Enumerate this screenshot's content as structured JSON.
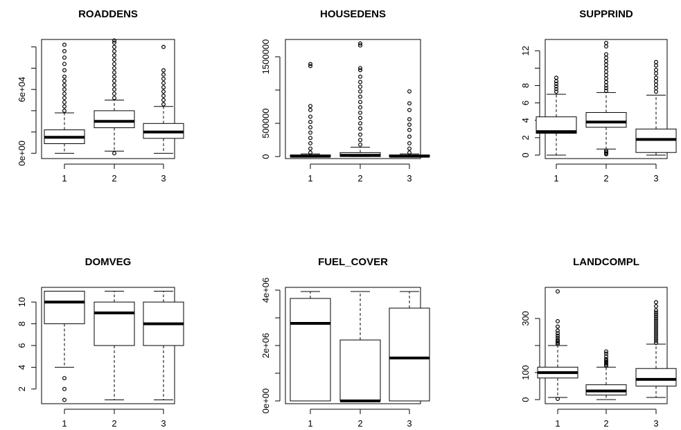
{
  "chart_data": [
    {
      "type": "box",
      "title": "ROADDENS",
      "categories": [
        "1",
        "2",
        "3"
      ],
      "ylim": [
        -5000,
        107000
      ],
      "yticks": [
        {
          "value": 0,
          "label": "0e+00"
        },
        {
          "value": 60000,
          "label": "6e+04"
        }
      ],
      "yminor": [
        20000,
        40000,
        80000,
        100000
      ],
      "boxes": [
        {
          "min": 0,
          "q1": 9000,
          "median": 15000,
          "q3": 22000,
          "whisker_hi": 38000,
          "outliers": [
            40000,
            44000,
            48000,
            52000,
            56000,
            60000,
            64000,
            68000,
            72000,
            78000,
            84000,
            90000,
            96000,
            102000
          ]
        },
        {
          "min": 2000,
          "q1": 24000,
          "median": 30000,
          "q3": 40000,
          "whisker_hi": 50000,
          "outliers": [
            0,
            52000,
            56000,
            60000,
            64000,
            68000,
            72000,
            76000,
            80000,
            84000,
            88000,
            92000,
            96000,
            100000,
            104000,
            106000
          ]
        },
        {
          "min": 0,
          "q1": 14000,
          "median": 20000,
          "q3": 28000,
          "whisker_hi": 44000,
          "outliers": [
            46000,
            50000,
            54000,
            58000,
            62000,
            66000,
            70000,
            74000,
            78000,
            100000
          ]
        }
      ]
    },
    {
      "type": "box",
      "title": "HOUSEDENS",
      "categories": [
        "1",
        "2",
        "3"
      ],
      "ylim": [
        -30000,
        1760000
      ],
      "yticks": [
        {
          "value": 0,
          "label": "0"
        },
        {
          "value": 500000,
          "label": "500000"
        },
        {
          "value": 1500000,
          "label": "1500000"
        }
      ],
      "yminor": [
        1000000
      ],
      "boxes": [
        {
          "min": 0,
          "q1": 0,
          "median": 5000,
          "q3": 25000,
          "whisker_hi": 40000,
          "outliers": [
            60000,
            120000,
            200000,
            280000,
            360000,
            440000,
            520000,
            600000,
            700000,
            760000,
            1360000,
            1390000
          ]
        },
        {
          "min": 0,
          "q1": 0,
          "median": 20000,
          "q3": 60000,
          "whisker_hi": 140000,
          "outliers": [
            180000,
            250000,
            330000,
            420000,
            500000,
            580000,
            660000,
            740000,
            820000,
            900000,
            980000,
            1050000,
            1120000,
            1200000,
            1300000,
            1330000,
            1670000,
            1700000
          ]
        },
        {
          "min": 0,
          "q1": 0,
          "median": 5000,
          "q3": 25000,
          "whisker_hi": 40000,
          "outliers": [
            60000,
            120000,
            200000,
            300000,
            400000,
            480000,
            560000,
            700000,
            800000,
            980000
          ]
        }
      ]
    },
    {
      "type": "box",
      "title": "SUPPRIND",
      "categories": [
        "1",
        "2",
        "3"
      ],
      "ylim": [
        -0.4,
        13.3
      ],
      "yticks": [
        {
          "value": 0,
          "label": "0"
        },
        {
          "value": 2,
          "label": "2"
        },
        {
          "value": 4,
          "label": "4"
        },
        {
          "value": 6,
          "label": "6"
        },
        {
          "value": 8,
          "label": "8"
        },
        {
          "value": 12,
          "label": "12"
        }
      ],
      "yminor": [
        10
      ],
      "boxes": [
        {
          "min": 0,
          "q1": 2.5,
          "median": 2.7,
          "q3": 4.4,
          "whisker_hi": 7.0,
          "outliers": [
            7.3,
            7.6,
            7.9,
            8.2,
            8.5,
            8.9
          ]
        },
        {
          "min": 0.7,
          "q1": 3.2,
          "median": 3.8,
          "q3": 4.9,
          "whisker_hi": 7.2,
          "outliers": [
            0.1,
            0.2,
            0.35,
            0.5,
            7.4,
            7.7,
            8.0,
            8.4,
            8.8,
            9.2,
            9.6,
            10.0,
            10.4,
            10.8,
            11.2,
            11.6,
            12.5,
            12.9
          ]
        },
        {
          "min": 0,
          "q1": 0.3,
          "median": 1.8,
          "q3": 3.0,
          "whisker_hi": 6.9,
          "outliers": [
            7.3,
            7.7,
            8.1,
            8.5,
            8.9,
            9.4,
            9.8,
            10.3,
            10.7
          ]
        }
      ]
    },
    {
      "type": "box",
      "title": "DOMVEG",
      "categories": [
        "1",
        "2",
        "3"
      ],
      "ylim": [
        0.65,
        11.35
      ],
      "yticks": [
        {
          "value": 2,
          "label": "2"
        },
        {
          "value": 4,
          "label": "4"
        },
        {
          "value": 6,
          "label": "6"
        },
        {
          "value": 8,
          "label": "8"
        },
        {
          "value": 10,
          "label": "10"
        }
      ],
      "yminor": [],
      "boxes": [
        {
          "min": 4,
          "q1": 8,
          "median": 10,
          "q3": 11,
          "whisker_hi": 11,
          "outliers": [
            1,
            2,
            3
          ]
        },
        {
          "min": 1,
          "q1": 6,
          "median": 9,
          "q3": 10,
          "whisker_hi": 11,
          "outliers": []
        },
        {
          "min": 1,
          "q1": 6,
          "median": 8,
          "q3": 10,
          "whisker_hi": 11,
          "outliers": []
        }
      ]
    },
    {
      "type": "box",
      "title": "FUEL_COVER",
      "categories": [
        "1",
        "2",
        "3"
      ],
      "ylim": [
        -100000,
        4100000
      ],
      "yticks": [
        {
          "value": 0,
          "label": "0e+00"
        },
        {
          "value": 2000000,
          "label": "2e+06"
        },
        {
          "value": 4000000,
          "label": "4e+06"
        }
      ],
      "yminor": [
        1000000,
        3000000
      ],
      "boxes": [
        {
          "min": 0,
          "q1": 0,
          "median": 2800000,
          "q3": 3700000,
          "whisker_hi": 3950000,
          "outliers": []
        },
        {
          "min": 0,
          "q1": 0,
          "median": 0,
          "q3": 2200000,
          "whisker_hi": 3950000,
          "outliers": []
        },
        {
          "min": 0,
          "q1": 0,
          "median": 1550000,
          "q3": 3350000,
          "whisker_hi": 3950000,
          "outliers": []
        }
      ]
    },
    {
      "type": "box",
      "title": "LANDCOMPL",
      "categories": [
        "1",
        "2",
        "3"
      ],
      "ylim": [
        -15,
        415
      ],
      "yticks": [
        {
          "value": 0,
          "label": "0"
        },
        {
          "value": 100,
          "label": "100"
        },
        {
          "value": 300,
          "label": "300"
        }
      ],
      "yminor": [
        200
      ],
      "boxes": [
        {
          "min": 8,
          "q1": 80,
          "median": 100,
          "q3": 120,
          "whisker_hi": 200,
          "outliers": [
            3,
            205,
            210,
            215,
            220,
            228,
            236,
            245,
            255,
            270,
            290,
            400
          ]
        },
        {
          "min": 0,
          "q1": 17,
          "median": 32,
          "q3": 55,
          "whisker_hi": 120,
          "outliers": [
            125,
            130,
            135,
            140,
            145,
            150,
            160,
            170,
            178
          ]
        },
        {
          "min": 8,
          "q1": 50,
          "median": 75,
          "q3": 115,
          "whisker_hi": 205,
          "outliers": [
            210,
            218,
            226,
            234,
            242,
            250,
            258,
            266,
            274,
            282,
            290,
            298,
            306,
            314,
            322,
            330,
            345,
            360
          ]
        }
      ]
    }
  ]
}
